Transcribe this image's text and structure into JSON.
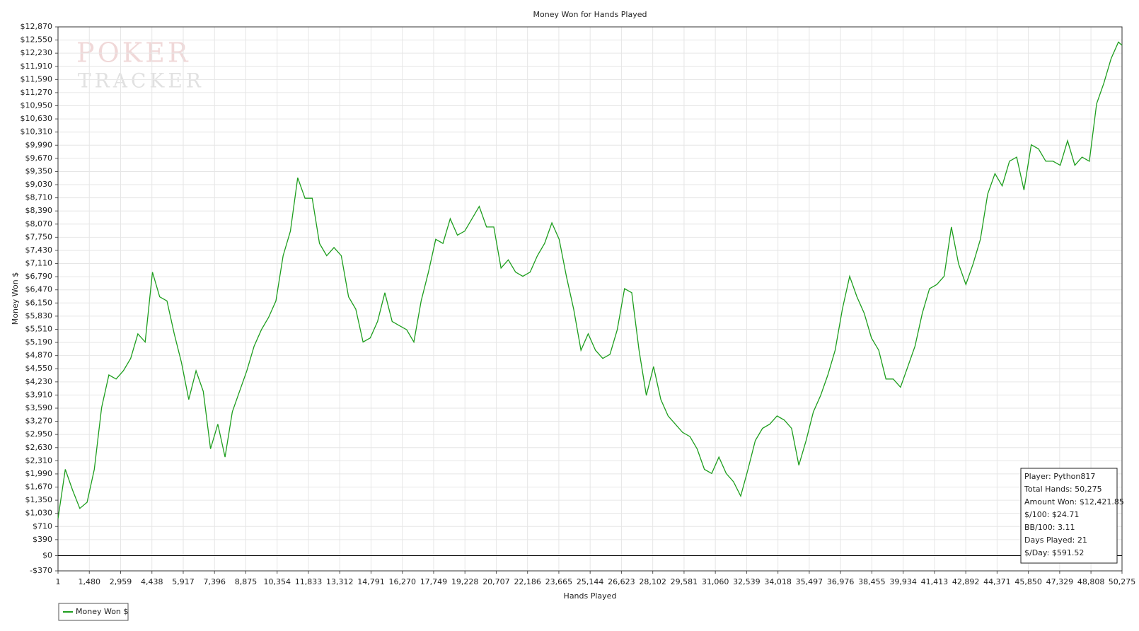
{
  "chart_data": {
    "type": "line",
    "title": "Money Won for Hands Played",
    "xlabel": "Hands Played",
    "ylabel": "Money Won $",
    "watermark": [
      "POKER",
      "TRACKER"
    ],
    "grid": true,
    "legend": "bottom-left",
    "xlim": [
      1,
      50275
    ],
    "ylim": [
      -370,
      12870
    ],
    "xticks": [
      1,
      {
        "value": 1480,
        "label": "1,480"
      },
      {
        "value": 2959,
        "label": "2,959"
      },
      {
        "value": 4438,
        "label": "4,438"
      },
      {
        "value": 5917,
        "label": "5,917"
      },
      {
        "value": 7396,
        "label": "7,396"
      },
      {
        "value": 8875,
        "label": "8,875"
      },
      {
        "value": 10354,
        "label": "10,354"
      },
      {
        "value": 11833,
        "label": "11,833"
      },
      {
        "value": 13312,
        "label": "13,312"
      },
      {
        "value": 14791,
        "label": "14,791"
      },
      {
        "value": 16270,
        "label": "16,270"
      },
      {
        "value": 17749,
        "label": "17,749"
      },
      {
        "value": 19228,
        "label": "19,228"
      },
      {
        "value": 20707,
        "label": "20,707"
      },
      {
        "value": 22186,
        "label": "22,186"
      },
      {
        "value": 23665,
        "label": "23,665"
      },
      {
        "value": 25144,
        "label": "25,144"
      },
      {
        "value": 26623,
        "label": "26,623"
      },
      {
        "value": 28102,
        "label": "28,102"
      },
      {
        "value": 29581,
        "label": "29,581"
      },
      {
        "value": 31060,
        "label": "31,060"
      },
      {
        "value": 32539,
        "label": "32,539"
      },
      {
        "value": 34018,
        "label": "34,018"
      },
      {
        "value": 35497,
        "label": "35,497"
      },
      {
        "value": 36976,
        "label": "36,976"
      },
      {
        "value": 38455,
        "label": "38,455"
      },
      {
        "value": 39934,
        "label": "39,934"
      },
      {
        "value": 41413,
        "label": "41,413"
      },
      {
        "value": 42892,
        "label": "42,892"
      },
      {
        "value": 44371,
        "label": "44,371"
      },
      {
        "value": 45850,
        "label": "45,850"
      },
      {
        "value": 47329,
        "label": "47,329"
      },
      {
        "value": 48808,
        "label": "48,808"
      },
      {
        "value": 50275,
        "label": "50,275"
      }
    ],
    "yticks": [
      {
        "value": -370,
        "label": "-$370"
      },
      {
        "value": 0,
        "label": "$0"
      },
      {
        "value": 390,
        "label": "$390"
      },
      {
        "value": 710,
        "label": "$710"
      },
      {
        "value": 1030,
        "label": "$1,030"
      },
      {
        "value": 1350,
        "label": "$1,350"
      },
      {
        "value": 1670,
        "label": "$1,670"
      },
      {
        "value": 1990,
        "label": "$1,990"
      },
      {
        "value": 2310,
        "label": "$2,310"
      },
      {
        "value": 2630,
        "label": "$2,630"
      },
      {
        "value": 2950,
        "label": "$2,950"
      },
      {
        "value": 3270,
        "label": "$3,270"
      },
      {
        "value": 3590,
        "label": "$3,590"
      },
      {
        "value": 3910,
        "label": "$3,910"
      },
      {
        "value": 4230,
        "label": "$4,230"
      },
      {
        "value": 4550,
        "label": "$4,550"
      },
      {
        "value": 4870,
        "label": "$4,870"
      },
      {
        "value": 5190,
        "label": "$5,190"
      },
      {
        "value": 5510,
        "label": "$5,510"
      },
      {
        "value": 5830,
        "label": "$5,830"
      },
      {
        "value": 6150,
        "label": "$6,150"
      },
      {
        "value": 6470,
        "label": "$6,470"
      },
      {
        "value": 6790,
        "label": "$6,790"
      },
      {
        "value": 7110,
        "label": "$7,110"
      },
      {
        "value": 7430,
        "label": "$7,430"
      },
      {
        "value": 7750,
        "label": "$7,750"
      },
      {
        "value": 8070,
        "label": "$8,070"
      },
      {
        "value": 8390,
        "label": "$8,390"
      },
      {
        "value": 8710,
        "label": "$8,710"
      },
      {
        "value": 9030,
        "label": "$9,030"
      },
      {
        "value": 9350,
        "label": "$9,350"
      },
      {
        "value": 9670,
        "label": "$9,670"
      },
      {
        "value": 9990,
        "label": "$9,990"
      },
      {
        "value": 10310,
        "label": "$10,310"
      },
      {
        "value": 10630,
        "label": "$10,630"
      },
      {
        "value": 10950,
        "label": "$10,950"
      },
      {
        "value": 11270,
        "label": "$11,270"
      },
      {
        "value": 11590,
        "label": "$11,590"
      },
      {
        "value": 11910,
        "label": "$11,910"
      },
      {
        "value": 12230,
        "label": "$12,230"
      },
      {
        "value": 12550,
        "label": "$12,550"
      },
      {
        "value": 12870,
        "label": "$12,870"
      }
    ],
    "x": [
      1,
      344,
      687,
      1031,
      1374,
      1717,
      2060,
      2403,
      2746,
      3090,
      3433,
      3776,
      4119,
      4462,
      4805,
      5149,
      5492,
      5835,
      6178,
      6521,
      6864,
      7208,
      7551,
      7894,
      8237,
      8580,
      8923,
      9267,
      9610,
      9953,
      10296,
      10639,
      10982,
      11326,
      11669,
      12012,
      12355,
      12698,
      13041,
      13385,
      13728,
      14071,
      14414,
      14757,
      15100,
      15444,
      15787,
      16130,
      16473,
      16816,
      17159,
      17503,
      17846,
      18189,
      18532,
      18875,
      19218,
      19562,
      19905,
      20248,
      20591,
      20934,
      21277,
      21621,
      21964,
      22307,
      22650,
      22993,
      23336,
      23680,
      24023,
      24366,
      24709,
      25052,
      25395,
      25739,
      26082,
      26425,
      26768,
      27111,
      27455,
      27798,
      28141,
      28484,
      28827,
      29170,
      29514,
      29857,
      30200,
      30543,
      30886,
      31229,
      31573,
      31916,
      32259,
      32602,
      32945,
      33288,
      33632,
      33975,
      34318,
      34661,
      35004,
      35347,
      35691,
      36034,
      36377,
      36720,
      37063,
      37406,
      37750,
      38093,
      38436,
      38779,
      39122,
      39465,
      39809,
      40152,
      40495,
      40838,
      41181,
      41524,
      41868,
      42211,
      42554,
      42897,
      43240,
      43583,
      43927,
      44270,
      44613,
      44956,
      45299,
      45642,
      45986,
      46329,
      46672,
      47015,
      47358,
      47701,
      48045,
      48388,
      48731,
      49074,
      49417,
      49760,
      50104,
      50275
    ],
    "series": [
      {
        "name": "Money Won $",
        "color": "#1e9e1e",
        "values": [
          900,
          2100,
          1600,
          1150,
          1300,
          2100,
          3600,
          4400,
          4300,
          4500,
          4800,
          5400,
          5200,
          6900,
          6300,
          6200,
          5400,
          4700,
          3800,
          4500,
          4000,
          2600,
          3200,
          2400,
          3500,
          4000,
          4500,
          5100,
          5500,
          5800,
          6200,
          7300,
          7900,
          9200,
          8700,
          8700,
          7600,
          7300,
          7500,
          7300,
          6300,
          6000,
          5200,
          5300,
          5700,
          6400,
          5700,
          5600,
          5500,
          5200,
          6200,
          6900,
          7700,
          7600,
          8200,
          7800,
          7900,
          8200,
          8500,
          8000,
          8000,
          7000,
          7200,
          6900,
          6800,
          6900,
          7300,
          7600,
          8100,
          7700,
          6800,
          6000,
          5000,
          5400,
          5000,
          4800,
          4900,
          5500,
          6500,
          6400,
          5000,
          3900,
          4600,
          3800,
          3400,
          3200,
          3000,
          2900,
          2600,
          2100,
          2000,
          2400,
          2000,
          1800,
          1450,
          2100,
          2800,
          3100,
          3200,
          3400,
          3300,
          3100,
          2200,
          2800,
          3500,
          3900,
          4400,
          5000,
          6000,
          6800,
          6300,
          5900,
          5300,
          5000,
          4300,
          4300,
          4100,
          4600,
          5100,
          5900,
          6500,
          6600,
          6800,
          8000,
          7100,
          6600,
          7100,
          7700,
          8800,
          9300,
          9000,
          9600,
          9700,
          8900,
          10000,
          9900,
          9600,
          9600,
          9500,
          10100,
          9500,
          9700,
          9600,
          11000,
          11500,
          12100,
          12500,
          12421.85
        ]
      }
    ],
    "info_box": [
      "Player: Python817",
      "Total Hands: 50,275",
      "Amount Won: $12,421.85",
      "$/100: $24.71",
      "BB/100: 3.11",
      "Days Played: 21",
      "$/Day: $591.52"
    ]
  }
}
